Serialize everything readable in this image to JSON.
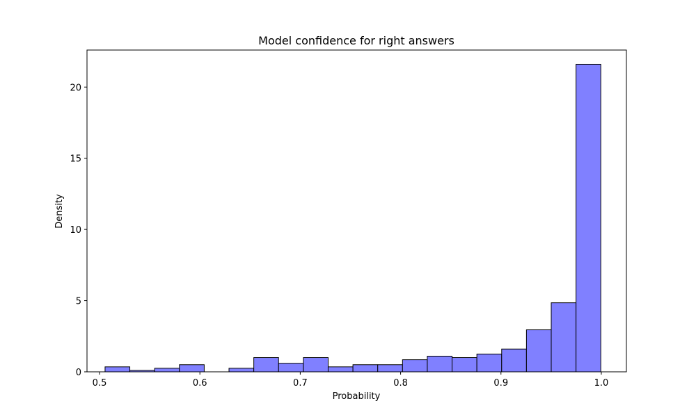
{
  "chart_data": {
    "type": "bar",
    "title": "Model confidence for right answers",
    "xlabel": "Probability",
    "ylabel": "Density",
    "xlim": [
      0.4875,
      1.025
    ],
    "ylim": [
      0,
      22.6
    ],
    "x_ticks": [
      0.5,
      0.6,
      0.7,
      0.8,
      0.9,
      1.0
    ],
    "x_tick_labels": [
      "0.5",
      "0.6",
      "0.7",
      "0.8",
      "0.9",
      "1.0"
    ],
    "y_ticks": [
      0,
      5,
      10,
      15,
      20
    ],
    "y_tick_labels": [
      "0",
      "5",
      "10",
      "15",
      "20"
    ],
    "bin_edges": [
      0.5055,
      0.5302,
      0.5549,
      0.5796,
      0.6043,
      0.629,
      0.6537,
      0.6784,
      0.7031,
      0.7278,
      0.7525,
      0.7772,
      0.8019,
      0.8266,
      0.8513,
      0.876,
      0.9007,
      0.9254,
      0.9501,
      0.9748,
      0.9995
    ],
    "values": [
      0.35,
      0.1,
      0.25,
      0.5,
      0.0,
      0.25,
      1.0,
      0.6,
      1.0,
      0.35,
      0.5,
      0.5,
      0.85,
      1.1,
      1.0,
      1.25,
      1.6,
      2.95,
      4.85,
      21.6
    ],
    "bar_color": "#8080ff",
    "edge_color": "#000000",
    "grid": false,
    "legend": false
  }
}
